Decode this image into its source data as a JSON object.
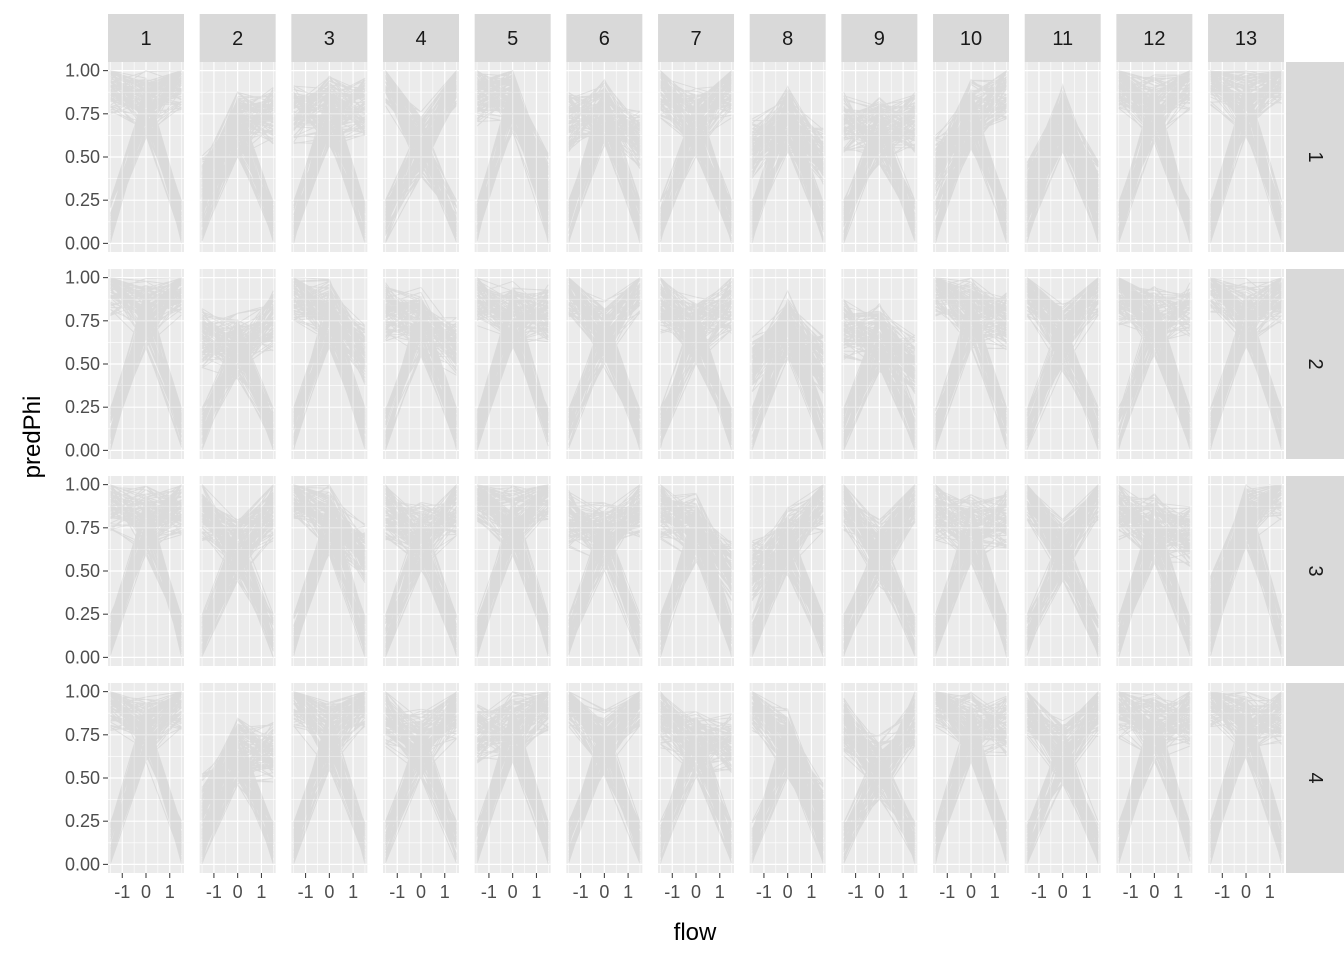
{
  "chart_data": {
    "type": "line",
    "description_note": "",
    "xlabel": "flow",
    "ylabel": "predPhi",
    "xlim": [
      -1.6,
      1.6
    ],
    "ylim": [
      -0.05,
      1.05
    ],
    "x_ticks": [
      -1,
      0,
      1
    ],
    "x_tick_labels": [
      "-1",
      "0",
      "1"
    ],
    "y_ticks": [
      0,
      0.25,
      0.5,
      0.75,
      1
    ],
    "y_tick_labels": [
      "0.00",
      "0.25",
      "0.50",
      "0.75",
      "1.00"
    ],
    "column_facets": [
      "1",
      "2",
      "3",
      "4",
      "5",
      "6",
      "7",
      "8",
      "9",
      "10",
      "11",
      "12",
      "13"
    ],
    "row_facets": [
      "1",
      "2",
      "3",
      "4"
    ],
    "x_range_data": [
      -1.5,
      1.5
    ],
    "grid": true,
    "legend": "none",
    "colors": {
      "panel_bg": "#ebebeb",
      "grid_major": "#ffffff",
      "strip_bg": "#d9d9d9",
      "line": "#000000"
    },
    "panel_profiles": [
      [
        {
          "left": 0.92,
          "mid": 0.87,
          "right": 0.95
        },
        {
          "left": 0.35,
          "mid": 0.75,
          "right": 0.75
        },
        {
          "left": 0.75,
          "mid": 0.82,
          "right": 0.8
        },
        {
          "left": 0.97,
          "mid": 0.62,
          "right": 0.97
        },
        {
          "left": 0.85,
          "mid": 0.88,
          "right": 0.35
        },
        {
          "left": 0.7,
          "mid": 0.82,
          "right": 0.6
        },
        {
          "left": 0.9,
          "mid": 0.75,
          "right": 0.9
        },
        {
          "left": 0.55,
          "mid": 0.78,
          "right": 0.5
        },
        {
          "left": 0.7,
          "mid": 0.7,
          "right": 0.7
        },
        {
          "left": 0.45,
          "mid": 0.8,
          "right": 0.88
        },
        {
          "left": 0.3,
          "mid": 0.78,
          "right": 0.3
        },
        {
          "left": 0.93,
          "mid": 0.83,
          "right": 0.93
        },
        {
          "left": 0.97,
          "mid": 0.88,
          "right": 0.97
        }
      ],
      [
        {
          "left": 0.95,
          "mid": 0.85,
          "right": 0.95
        },
        {
          "left": 0.65,
          "mid": 0.65,
          "right": 0.75
        },
        {
          "left": 0.92,
          "mid": 0.85,
          "right": 0.55
        },
        {
          "left": 0.8,
          "mid": 0.8,
          "right": 0.6
        },
        {
          "left": 0.88,
          "mid": 0.85,
          "right": 0.8
        },
        {
          "left": 0.95,
          "mid": 0.72,
          "right": 0.97
        },
        {
          "left": 0.85,
          "mid": 0.75,
          "right": 0.85
        },
        {
          "left": 0.5,
          "mid": 0.78,
          "right": 0.5
        },
        {
          "left": 0.7,
          "mid": 0.7,
          "right": 0.5
        },
        {
          "left": 0.95,
          "mid": 0.85,
          "right": 0.75
        },
        {
          "left": 0.95,
          "mid": 0.7,
          "right": 0.95
        },
        {
          "left": 0.9,
          "mid": 0.8,
          "right": 0.8
        },
        {
          "left": 0.97,
          "mid": 0.85,
          "right": 0.9
        }
      ],
      [
        {
          "left": 0.9,
          "mid": 0.85,
          "right": 0.88
        },
        {
          "left": 0.85,
          "mid": 0.68,
          "right": 0.85
        },
        {
          "left": 0.95,
          "mid": 0.85,
          "right": 0.6
        },
        {
          "left": 0.85,
          "mid": 0.75,
          "right": 0.85
        },
        {
          "left": 0.95,
          "mid": 0.85,
          "right": 0.97
        },
        {
          "left": 0.8,
          "mid": 0.75,
          "right": 0.85
        },
        {
          "left": 0.85,
          "mid": 0.8,
          "right": 0.5
        },
        {
          "left": 0.5,
          "mid": 0.72,
          "right": 0.9
        },
        {
          "left": 0.9,
          "mid": 0.65,
          "right": 0.95
        },
        {
          "left": 0.85,
          "mid": 0.8,
          "right": 0.8
        },
        {
          "left": 0.97,
          "mid": 0.68,
          "right": 0.97
        },
        {
          "left": 0.85,
          "mid": 0.8,
          "right": 0.7
        },
        {
          "left": 0.3,
          "mid": 0.9,
          "right": 0.97
        }
      ],
      [
        {
          "left": 0.95,
          "mid": 0.85,
          "right": 0.95
        },
        {
          "left": 0.35,
          "mid": 0.7,
          "right": 0.65
        },
        {
          "left": 0.97,
          "mid": 0.8,
          "right": 0.97
        },
        {
          "left": 0.85,
          "mid": 0.75,
          "right": 0.9
        },
        {
          "left": 0.75,
          "mid": 0.85,
          "right": 0.95
        },
        {
          "left": 0.97,
          "mid": 0.75,
          "right": 0.97
        },
        {
          "left": 0.85,
          "mid": 0.75,
          "right": 0.7
        },
        {
          "left": 0.95,
          "mid": 0.75,
          "right": 0.3
        },
        {
          "left": 0.8,
          "mid": 0.6,
          "right": 0.85
        },
        {
          "left": 0.95,
          "mid": 0.85,
          "right": 0.8
        },
        {
          "left": 0.9,
          "mid": 0.7,
          "right": 0.9
        },
        {
          "left": 0.9,
          "mid": 0.85,
          "right": 0.85
        },
        {
          "left": 0.97,
          "mid": 0.88,
          "right": 0.85
        }
      ]
    ]
  }
}
